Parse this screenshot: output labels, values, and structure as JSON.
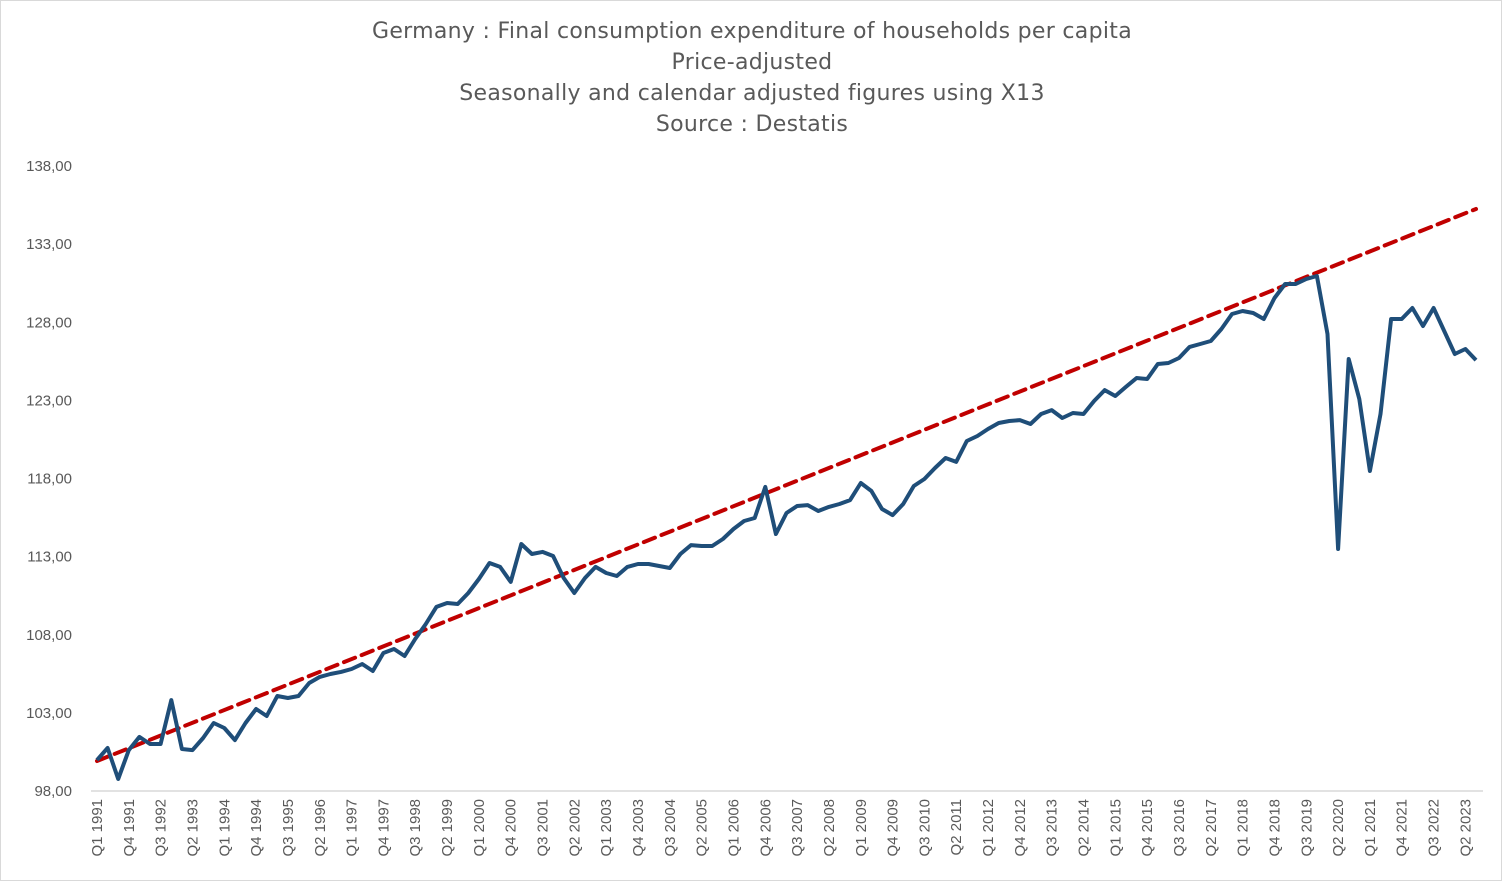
{
  "chart_data": {
    "type": "line",
    "title_lines": [
      "Germany : Final consumption expenditure of households per capita",
      "Price-adjusted",
      "Seasonally and calendar adjusted figures using X13",
      "Source : Destatis"
    ],
    "xlabel": "",
    "ylabel": "",
    "ylim": [
      98,
      138
    ],
    "yticks": [
      "98,00",
      "103,00",
      "108,00",
      "113,00",
      "118,00",
      "123,00",
      "128,00",
      "133,00",
      "138,00"
    ],
    "ytick_values": [
      98,
      103,
      108,
      113,
      118,
      123,
      128,
      133,
      138
    ],
    "x_tick_every": 3,
    "grid": false,
    "legend": "none",
    "colors": {
      "series": "#1f4e79",
      "trend": "#c00000",
      "axis": "#d9d9d9",
      "text": "#595959"
    },
    "categories": [
      "Q1 1991",
      "Q2 1991",
      "Q3 1991",
      "Q4 1991",
      "Q1 1992",
      "Q2 1992",
      "Q3 1992",
      "Q4 1992",
      "Q1 1993",
      "Q2 1993",
      "Q3 1993",
      "Q4 1993",
      "Q1 1994",
      "Q2 1994",
      "Q3 1994",
      "Q4 1994",
      "Q1 1995",
      "Q2 1995",
      "Q3 1995",
      "Q4 1995",
      "Q1 1996",
      "Q2 1996",
      "Q3 1996",
      "Q4 1996",
      "Q1 1997",
      "Q2 1997",
      "Q3 1997",
      "Q4 1997",
      "Q1 1998",
      "Q2 1998",
      "Q3 1998",
      "Q4 1998",
      "Q1 1999",
      "Q2 1999",
      "Q3 1999",
      "Q4 1999",
      "Q1 2000",
      "Q2 2000",
      "Q3 2000",
      "Q4 2000",
      "Q1 2001",
      "Q2 2001",
      "Q3 2001",
      "Q4 2001",
      "Q1 2002",
      "Q2 2002",
      "Q3 2002",
      "Q4 2002",
      "Q1 2003",
      "Q2 2003",
      "Q3 2003",
      "Q4 2003",
      "Q1 2004",
      "Q2 2004",
      "Q3 2004",
      "Q4 2004",
      "Q1 2005",
      "Q2 2005",
      "Q3 2005",
      "Q4 2005",
      "Q1 2006",
      "Q2 2006",
      "Q3 2006",
      "Q4 2006",
      "Q1 2007",
      "Q2 2007",
      "Q3 2007",
      "Q4 2007",
      "Q1 2008",
      "Q2 2008",
      "Q3 2008",
      "Q4 2008",
      "Q1 2009",
      "Q2 2009",
      "Q3 2009",
      "Q4 2009",
      "Q1 2010",
      "Q2 2010",
      "Q3 2010",
      "Q4 2010",
      "Q1 2011",
      "Q2 2011",
      "Q3 2011",
      "Q4 2011",
      "Q1 2012",
      "Q2 2012",
      "Q3 2012",
      "Q4 2012",
      "Q1 2013",
      "Q2 2013",
      "Q3 2013",
      "Q4 2013",
      "Q1 2014",
      "Q2 2014",
      "Q3 2014",
      "Q4 2014",
      "Q1 2015",
      "Q2 2015",
      "Q3 2015",
      "Q4 2015",
      "Q1 2016",
      "Q2 2016",
      "Q3 2016",
      "Q4 2016",
      "Q1 2017",
      "Q2 2017",
      "Q3 2017",
      "Q4 2017",
      "Q1 2018",
      "Q2 2018",
      "Q3 2018",
      "Q4 2018",
      "Q1 2019",
      "Q2 2019",
      "Q3 2019",
      "Q4 2019",
      "Q1 2020",
      "Q2 2020",
      "Q3 2020",
      "Q4 2020",
      "Q1 2021",
      "Q2 2021",
      "Q3 2021",
      "Q4 2021",
      "Q1 2022",
      "Q2 2022",
      "Q3 2022",
      "Q4 2022",
      "Q1 2023",
      "Q2 2023",
      "Q3 2023"
    ],
    "series": [
      {
        "values": [
          99.98,
          100.75,
          98.77,
          100.62,
          101.46,
          101.01,
          101.01,
          103.82,
          100.69,
          100.62,
          101.39,
          102.35,
          102.03,
          101.26,
          102.35,
          103.25,
          102.8,
          104.08,
          103.95,
          104.08,
          104.91,
          105.3,
          105.49,
          105.62,
          105.81,
          106.13,
          105.68,
          106.83,
          107.09,
          106.64,
          107.73,
          108.69,
          109.78,
          110.03,
          109.97,
          110.67,
          111.57,
          112.59,
          112.34,
          111.38,
          113.81,
          113.17,
          113.3,
          113.04,
          111.63,
          110.67,
          111.63,
          112.34,
          111.95,
          111.76,
          112.34,
          112.53,
          112.53,
          112.4,
          112.27,
          113.17,
          113.74,
          113.68,
          113.68,
          114.13,
          114.77,
          115.28,
          115.47,
          117.46,
          114.45,
          115.79,
          116.24,
          116.3,
          115.92,
          116.18,
          116.37,
          116.62,
          117.71,
          117.2,
          116.05,
          115.66,
          116.37,
          117.52,
          117.97,
          118.67,
          119.31,
          119.06,
          120.4,
          120.72,
          121.17,
          121.55,
          121.68,
          121.74,
          121.49,
          122.13,
          122.38,
          121.87,
          122.19,
          122.13,
          122.96,
          123.66,
          123.28,
          123.86,
          124.43,
          124.37,
          125.33,
          125.39,
          125.71,
          126.42,
          126.61,
          126.8,
          127.57,
          128.53,
          128.72,
          128.59,
          128.21,
          129.55,
          130.45,
          130.45,
          130.77,
          130.96,
          127.25,
          113.49,
          125.65,
          123.09,
          118.48,
          122.13,
          128.21,
          128.21,
          128.91,
          127.76,
          128.91,
          127.44,
          125.97,
          126.29,
          125.58
        ]
      },
      {
        "type": "linear-trend",
        "start": 99.92,
        "end": 135.25
      }
    ]
  }
}
